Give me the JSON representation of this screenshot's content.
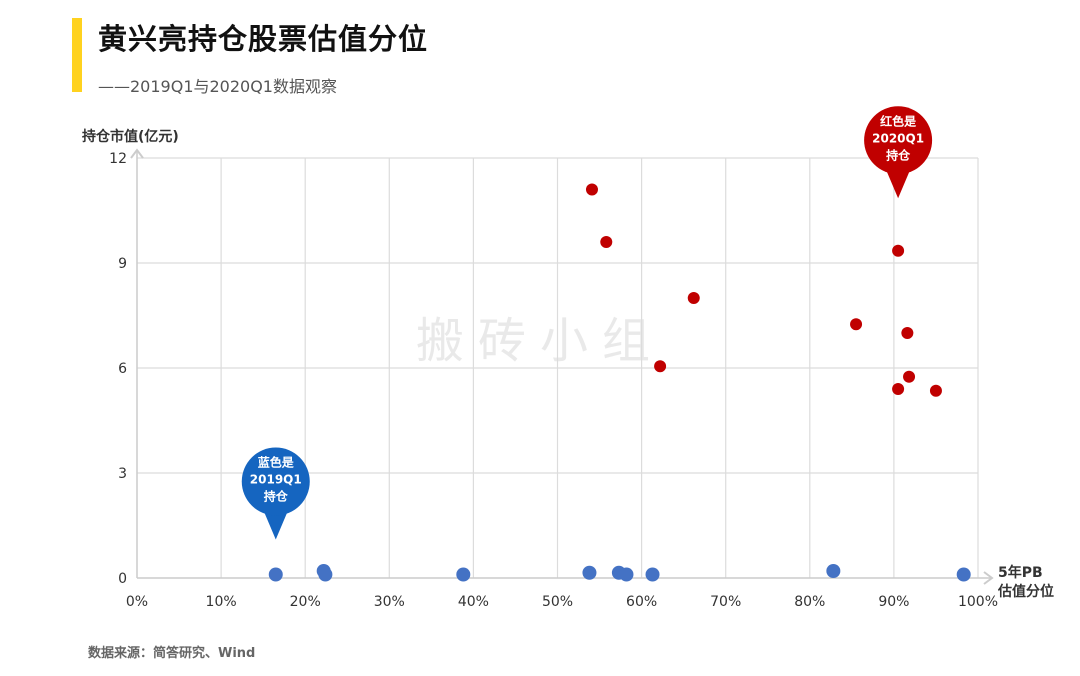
{
  "header": {
    "title": "黄兴亮持仓股票估值分位",
    "subtitle": "——2019Q1与2020Q1数据观察",
    "accent_color": "#FFD21F"
  },
  "footer": {
    "source": "数据来源：简答研究、Wind"
  },
  "watermark": "搬砖小组",
  "chart_data": {
    "type": "scatter",
    "title": "黄兴亮持仓股票估值分位",
    "ylabel": "持仓市值(亿元)",
    "xlabel_line1": "5年PB",
    "xlabel_line2": "估值分位",
    "xlim": [
      0,
      100
    ],
    "ylim": [
      0,
      12
    ],
    "x_ticks": [
      "0%",
      "10%",
      "20%",
      "30%",
      "40%",
      "50%",
      "60%",
      "70%",
      "80%",
      "90%",
      "100%"
    ],
    "y_ticks": [
      "0",
      "3",
      "6",
      "9",
      "12"
    ],
    "grid": true,
    "series": [
      {
        "name": "2019Q1持仓",
        "color": "#4472C4",
        "points": [
          {
            "x": 16.5,
            "y": 0.1
          },
          {
            "x": 22.2,
            "y": 0.2
          },
          {
            "x": 22.4,
            "y": 0.1
          },
          {
            "x": 38.8,
            "y": 0.1
          },
          {
            "x": 53.8,
            "y": 0.15
          },
          {
            "x": 57.3,
            "y": 0.15
          },
          {
            "x": 58.2,
            "y": 0.1
          },
          {
            "x": 61.3,
            "y": 0.1
          },
          {
            "x": 82.8,
            "y": 0.2
          },
          {
            "x": 98.3,
            "y": 0.1
          }
        ]
      },
      {
        "name": "2020Q1持仓",
        "color": "#C00000",
        "points": [
          {
            "x": 54.1,
            "y": 11.1
          },
          {
            "x": 55.8,
            "y": 9.6
          },
          {
            "x": 66.2,
            "y": 8.0
          },
          {
            "x": 62.2,
            "y": 6.05
          },
          {
            "x": 85.5,
            "y": 7.25
          },
          {
            "x": 90.5,
            "y": 9.35
          },
          {
            "x": 91.6,
            "y": 7.0
          },
          {
            "x": 91.8,
            "y": 5.75
          },
          {
            "x": 90.5,
            "y": 5.4
          },
          {
            "x": 95.0,
            "y": 5.35
          }
        ]
      }
    ],
    "annotations": [
      {
        "name": "blue-pin",
        "color": "#1565C0",
        "lines": [
          "蓝色是",
          "2019Q1",
          "持仓"
        ],
        "x": 16.5,
        "y": 1.1
      },
      {
        "name": "red-pin",
        "color": "#C00000",
        "lines": [
          "红色是",
          "2020Q1",
          "持仓"
        ],
        "x": 90.5,
        "y": 10.85
      }
    ]
  }
}
